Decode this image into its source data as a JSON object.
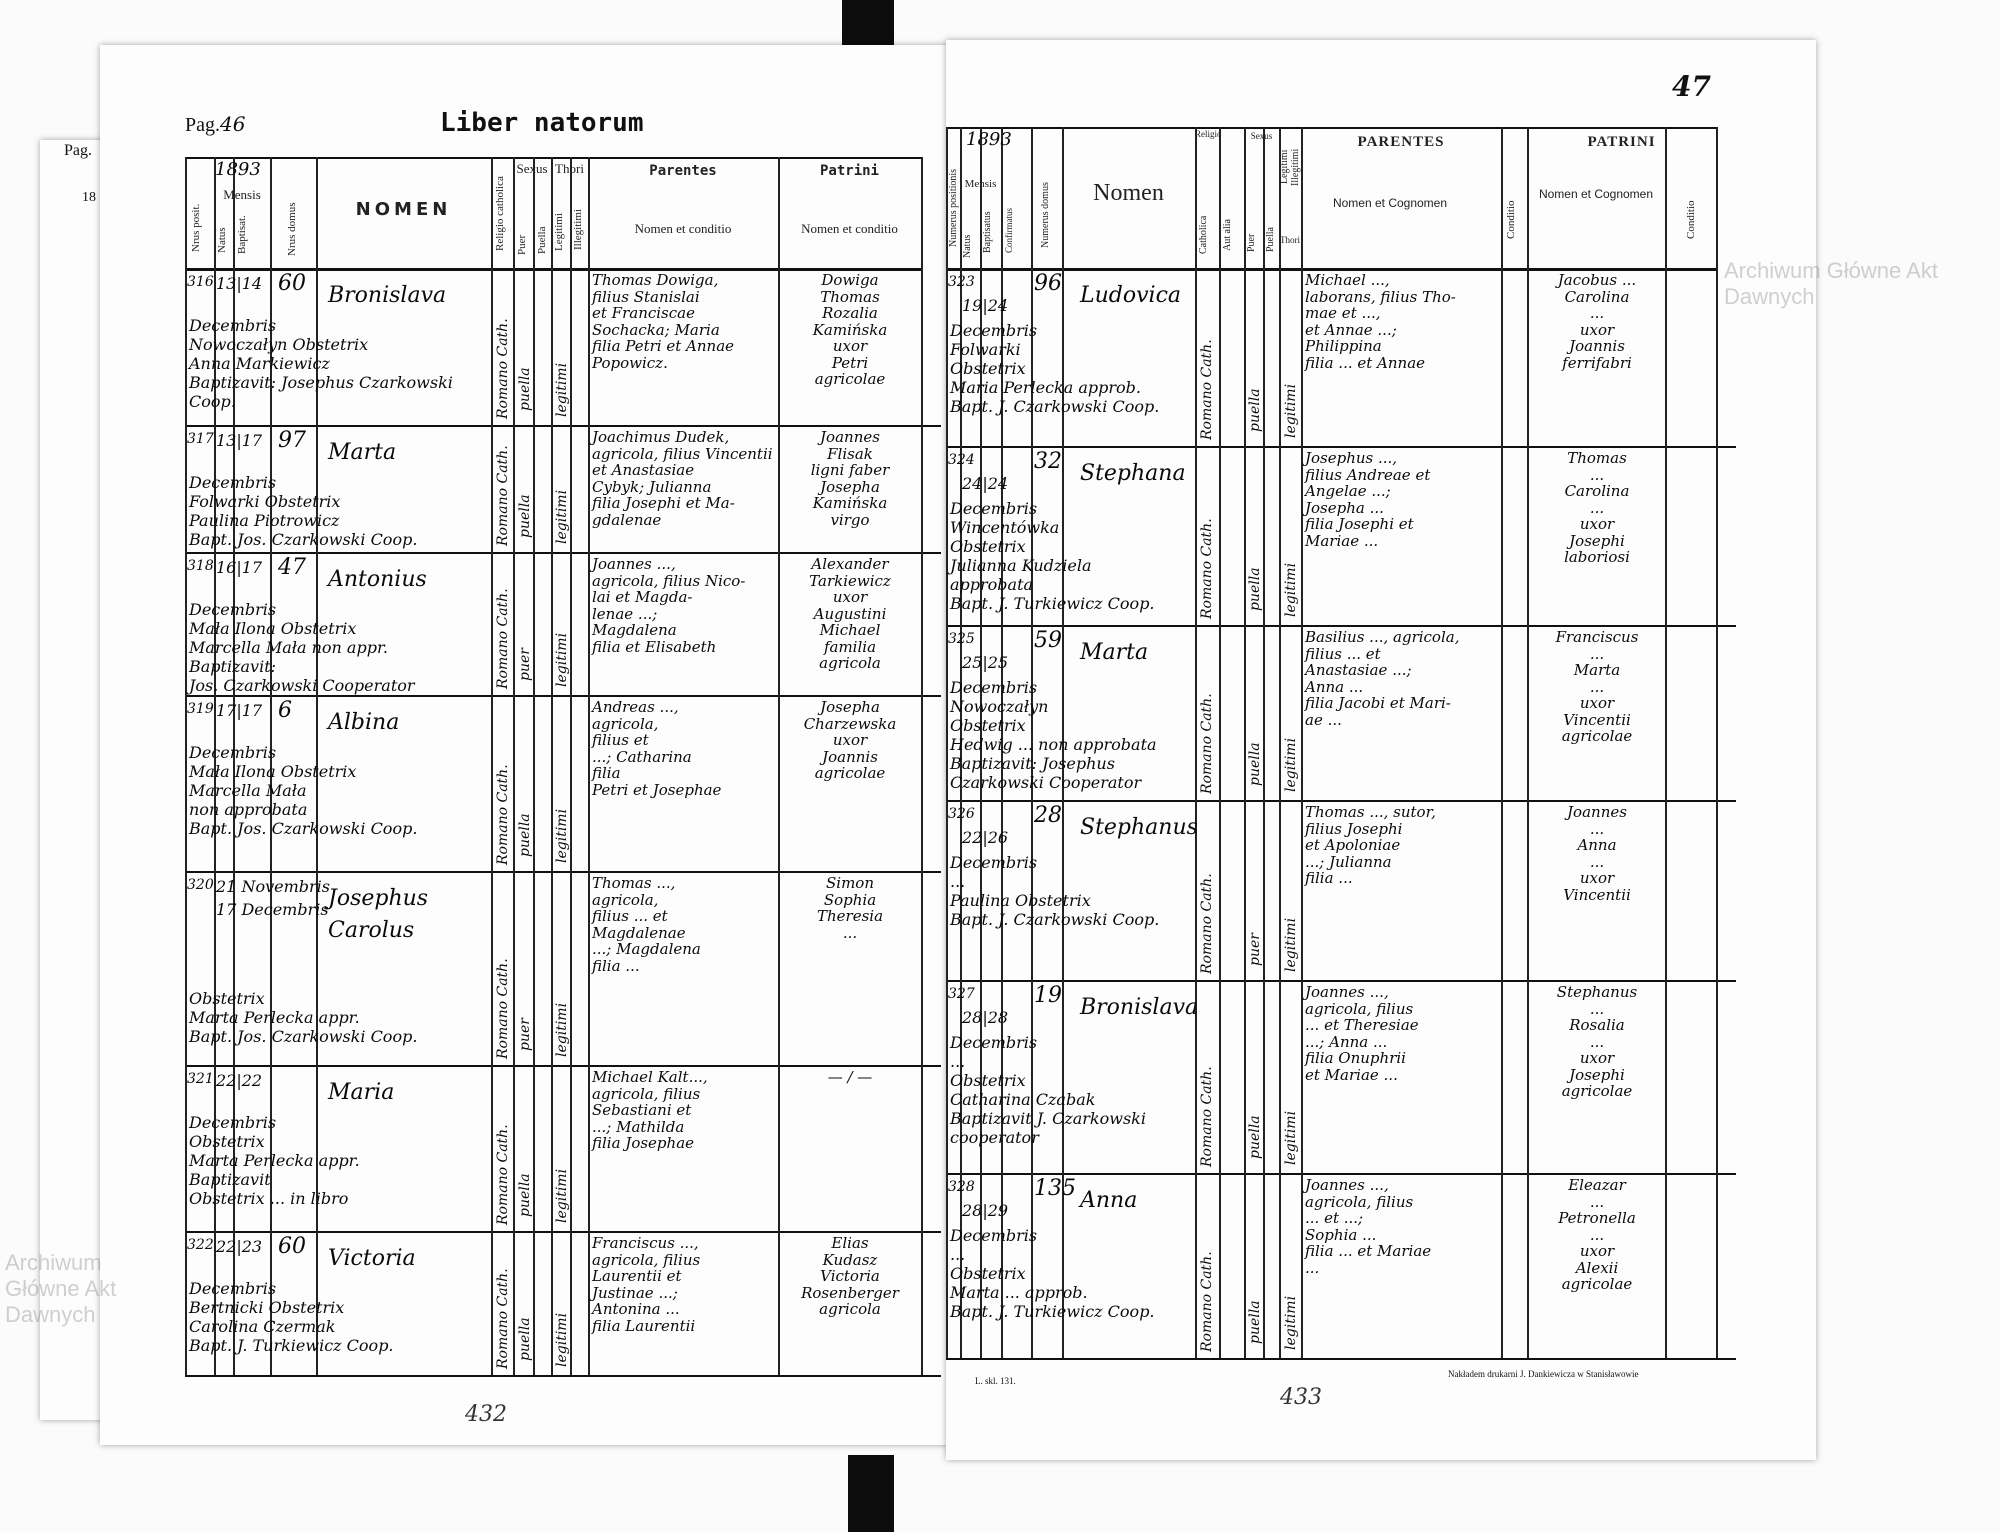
{
  "left_page": {
    "page_label": "Pag.",
    "page_number": "46",
    "title": "Liber natorum",
    "year": "1893",
    "headers": {
      "pos": "Nrus posit.",
      "mensis": "Mensis",
      "natus": "Natus",
      "baptisat": "Baptisat.",
      "domus": "Nrus domus",
      "nomen": "NOMEN",
      "religio": "Religio catholica",
      "sexus": "Sexus",
      "puer": "Puer",
      "puella": "Puella",
      "thori": "Thori",
      "legitimi": "Legitimi",
      "illegitimi": "Illegitimi",
      "parentes": "Parentes",
      "parentes_sub": "Nomen et conditio",
      "patrini": "Patrini",
      "patrini_sub": "Nomen et conditio"
    },
    "rows": [
      {
        "pos": "316",
        "dates": "13|14",
        "domus": "60",
        "nomen": "Bronislava",
        "notes": "Decembris\nNowoczałyn   Obstetrix\nAnna Markiewicz\nBaptizavit: Josephus Czarkowski Coop.",
        "religio": "Romano Cath.",
        "sexus": "puella",
        "thori": "legitimi",
        "parentes": "Thomas Dowiga,\nfilius Stanislai\net Franciscae\nSochacka; Maria\nfilia Petri et Annae\nPopowicz.",
        "patrini": "Dowiga\nThomas\nRozalia\nKamińska\nuxor\nPetri\nagricolae"
      },
      {
        "pos": "317",
        "dates": "13|17",
        "domus": "97",
        "nomen": "Marta",
        "notes": "Decembris\nFolwarki   Obstetrix\nPaulina Piotrowicz\nBapt. Jos. Czarkowski Coop.",
        "religio": "Romano Cath.",
        "sexus": "puella",
        "thori": "legitimi",
        "parentes": "Joachimus Dudek,\nagricola, filius Vincentii\net Anastasiae\nCybyk; Julianna\nfilia Josephi et Ma-\ngdalenae",
        "patrini": "Joannes\nFlisak\nligni faber\nJosepha\nKamińska\nvirgo"
      },
      {
        "pos": "318",
        "dates": "16|17",
        "domus": "47",
        "nomen": "Antonius",
        "notes": "Decembris\nMała Ilona   Obstetrix\nMarcella Mała non appr.\nBaptizavit:\nJos. Czarkowski Cooperator",
        "religio": "Romano Cath.",
        "sexus": "puer",
        "thori": "legitimi",
        "parentes": "Joannes ...,\nagricola, filius Nico-\nlai et Magda-\nlenae ...;\nMagdalena\nfilia et Elisabeth",
        "patrini": "Alexander\nTarkiewicz\nuxor\nAugustini\nMichael\nfamilia\nagricola"
      },
      {
        "pos": "319",
        "dates": "17|17",
        "domus": "6",
        "nomen": "Albina",
        "notes": "Decembris\nMała Ilona   Obstetrix\nMarcella Mała\nnon approbata\nBapt. Jos. Czarkowski Coop.",
        "religio": "Romano Cath.",
        "sexus": "puella",
        "thori": "legitimi",
        "parentes": "Andreas ...,\nagricola,\nfilius et\n...; Catharina\nfilia\nPetri et Josephae",
        "patrini": "Josepha\nCharzewska\nuxor\nJoannis\nagricolae"
      },
      {
        "pos": "320",
        "dates": "21 Novembris\n17 Decembris",
        "domus": "",
        "nomen": "Josephus\nCarolus",
        "notes": "\n\nObstetrix\nMarta Perlecka appr.\nBapt. Jos. Czarkowski Coop.",
        "religio": "Romano Cath.",
        "sexus": "puer",
        "thori": "legitimi",
        "parentes": "Thomas ...,\nagricola,\nfilius ... et\nMagdalenae\n...; Magdalena\nfilia ...",
        "patrini": "Simon\nSophia\nTheresia\n..."
      },
      {
        "pos": "321",
        "dates": "22|22",
        "domus": "",
        "nomen": "Maria",
        "notes": "Decembris\n   Obstetrix\nMarta Perlecka appr.\nBaptizavit\nObstetrix ... in libro",
        "religio": "Romano Cath.",
        "sexus": "puella",
        "thori": "legitimi",
        "parentes": "Michael Kalt...,\nagricola, filius\nSebastiani et\n...; Mathilda\nfilia Josephae",
        "patrini": "— / —"
      },
      {
        "pos": "322",
        "dates": "22|23",
        "domus": "60",
        "nomen": "Victoria",
        "notes": "Decembris\nBertnicki  Obstetrix\nCarolina Czermak\nBapt. J. Turkiewicz Coop.",
        "religio": "Romano Cath.",
        "sexus": "puella",
        "thori": "legitimi",
        "parentes": "Franciscus ...,\nagricola, filius\nLaurentii et\nJustinae ...;\nAntonina ...\nfilia Laurentii",
        "patrini": "Elias\nKudasz\nVictoria\nRosenberger\nagricola"
      }
    ],
    "footer": {
      "form": "L. skl. 131.",
      "folio": "432"
    }
  },
  "right_page": {
    "page_number": "47",
    "year": "1893",
    "headers": {
      "pos": "Numerus positionis",
      "mensis": "Mensis",
      "natus": "Natus",
      "baptisatus": "Baptisatus",
      "confirmatus": "Confirmatus",
      "domus": "Numerus domus",
      "nomen": "Nomen",
      "religio": "Religio",
      "catholica": "Catholica",
      "aut_alia": "Aut alia",
      "sexus": "Sexus",
      "puer": "Puer",
      "puella": "Puella",
      "legitimi": "Legitimi",
      "illegitimi": "Illegitimi",
      "thori": "Thori",
      "parentes": "PARENTES",
      "parentes_sub": "Nomen et Cognomen",
      "conditio": "Conditio",
      "patrini": "PATRINI",
      "patrini_sub": "Nomen et Cognomen",
      "patrini_conditio": "Conditio"
    },
    "rows": [
      {
        "pos": "323",
        "dates": "19|24",
        "domus": "96",
        "nomen": "Ludovica",
        "notes": "Decembris\nFolwarki\n   Obstetrix\nMaria Perlecka approb.\nBapt. J. Czarkowski Coop.",
        "religio": "Romano Cath.",
        "sexus": "puella",
        "thori": "legitimi",
        "parentes": "Michael ...,\nlaborans, filius Tho-\nmae et ...,\net Annae ...;\nPhilippina\nfilia ... et Annae",
        "patrini": "Jacobus ...\nCarolina\n...\nuxor\nJoannis\nferrifabri"
      },
      {
        "pos": "324",
        "dates": "24|24",
        "domus": "32",
        "nomen": "Stephana",
        "notes": "Decembris\nWincentówka\n   Obstetrix\nJulianna Kudziela\napprobata\nBapt. J. Turkiewicz Coop.",
        "religio": "Romano Cath.",
        "sexus": "puella",
        "thori": "legitimi",
        "parentes": "Josephus ...,\nfilius Andreae et\nAngelae ...;\nJosepha ...\nfilia Josephi et\nMariae ...",
        "patrini": "Thomas\n...\nCarolina\n...\nuxor\nJosephi\nlaboriosi"
      },
      {
        "pos": "325",
        "dates": "25|25",
        "domus": "59",
        "nomen": "Marta",
        "notes": "Decembris\nNowoczałyn\n   Obstetrix\nHedwig ... non approbata\nBaptizavit: Josephus Czarkowski Cooperator",
        "religio": "Romano Cath.",
        "sexus": "puella",
        "thori": "legitimi",
        "parentes": "Basilius ..., agricola,\nfilius ... et\nAnastasiae ...;\nAnna ...\nfilia Jacobi et Mari-\nae ...",
        "patrini": "Franciscus\n...\nMarta\n...\nuxor\nVincentii\nagricolae"
      },
      {
        "pos": "326",
        "dates": "22|26",
        "domus": "28",
        "nomen": "Stephanus",
        "notes": "Decembris\n...\nPaulina   Obstetrix\nBapt. J. Czarkowski Coop.",
        "religio": "Romano Cath.",
        "sexus": "puer",
        "thori": "legitimi",
        "parentes": "Thomas ..., sutor,\nfilius Josephi\net Apoloniae\n...; Julianna\nfilia ...",
        "patrini": "Joannes\n...\nAnna\n...\nuxor\nVincentii"
      },
      {
        "pos": "327",
        "dates": "28|28",
        "domus": "19",
        "nomen": "Bronislava",
        "notes": "Decembris\n...\n   Obstetrix\nCatharina Czabak\nBaptizavit J. Czarkowski cooperator",
        "religio": "Romano Cath.",
        "sexus": "puella",
        "thori": "legitimi",
        "parentes": "Joannes ...,\nagricola, filius\n... et Theresiae\n...; Anna ...\nfilia Onuphrii\net Mariae ...",
        "patrini": "Stephanus\n...\nRosalia\n...\nuxor\nJosephi\nagricolae"
      },
      {
        "pos": "328",
        "dates": "28|29",
        "domus": "135",
        "nomen": "Anna",
        "notes": "Decembris\n...\n   Obstetrix\nMarta ... approb.\nBapt. J. Turkiewicz Coop.",
        "religio": "Romano Cath.",
        "sexus": "puella",
        "thori": "legitimi",
        "parentes": "Joannes ...,\nagricola, filius\n... et ...;\nSophia ...\nfilia ... et Mariae\n...",
        "patrini": "Eleazar\n...\nPetronella\n...\nuxor\nAlexii\nagricolae"
      }
    ],
    "footer": {
      "printer": "Nakładem drukarni J. Dankiewicza w Stanisławowie",
      "folio": "433"
    }
  },
  "side_page": {
    "page_label": "Pag.",
    "year": "18"
  },
  "watermark": "Archiwum Główne Akt Dawnych"
}
